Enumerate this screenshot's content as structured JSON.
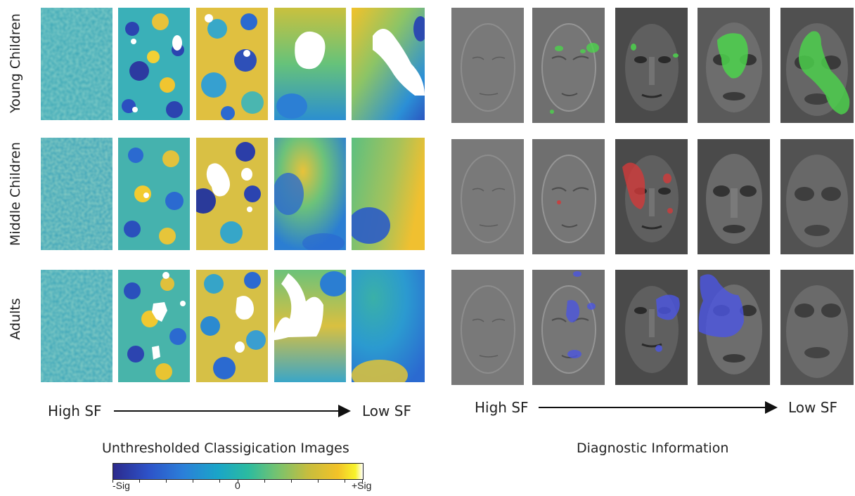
{
  "rows": {
    "young": "Young Children",
    "middle": "Middle Children",
    "adults": "Adults"
  },
  "left_axis": {
    "start": "High SF",
    "end": "Low SF"
  },
  "right_axis": {
    "start": "High SF",
    "end": "Low SF"
  },
  "left_caption": "Unthresholded Classigication Images",
  "right_caption": "Diagnostic Information",
  "colorbar": {
    "min": "-Sig",
    "mid": "0",
    "max": "+Sig"
  },
  "colors": {
    "young": "#4cd34c",
    "middle": "#d23a3a",
    "adults": "#4c56e0"
  }
}
